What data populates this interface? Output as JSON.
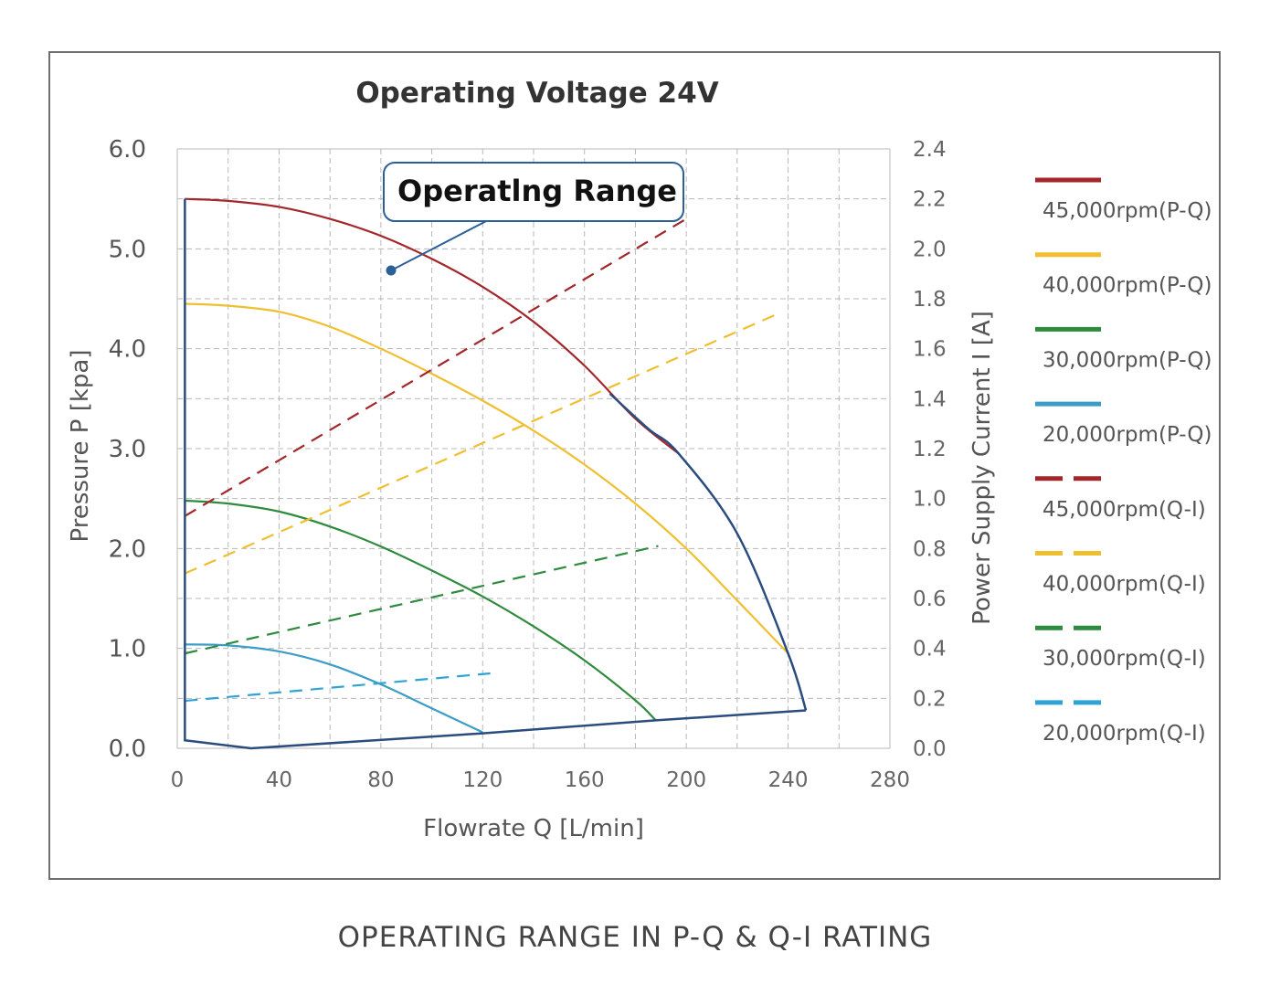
{
  "caption": "OPERATING RANGE IN P-Q & Q-I RATING",
  "chart_data": {
    "type": "line",
    "title": "Operating Voltage 24V",
    "xlabel": "Flowrate Q [L/min]",
    "ylabel": "Pressure P [kpa]",
    "y2label": "Power Supply Current I [A]",
    "xlim": [
      0,
      280
    ],
    "ylim": [
      0,
      6.0
    ],
    "y2lim": [
      0,
      2.4
    ],
    "xticks": [
      "0",
      "40",
      "80",
      "120",
      "160",
      "200",
      "240",
      "280"
    ],
    "yticks": [
      "0.0",
      "1.0",
      "2.0",
      "3.0",
      "4.0",
      "5.0",
      "6.0"
    ],
    "y2ticks": [
      "0.0",
      "0.2",
      "0.4",
      "0.6",
      "0.8",
      "1.0",
      "1.2",
      "1.4",
      "1.6",
      "1.8",
      "2.0",
      "2.2",
      "2.4"
    ],
    "grid": true,
    "legend_position": "right",
    "annotation": "Operatlng Range",
    "series": [
      {
        "name": "45,000rpm(P-Q)",
        "axis": "left",
        "style": "solid",
        "color": "#a3262a",
        "x": [
          3,
          20,
          40,
          60,
          80,
          100,
          120,
          140,
          160,
          180,
          197
        ],
        "y": [
          5.5,
          5.48,
          5.42,
          5.3,
          5.13,
          4.9,
          4.62,
          4.27,
          3.83,
          3.3,
          2.95
        ]
      },
      {
        "name": "40,000rpm(P-Q)",
        "axis": "left",
        "style": "solid",
        "color": "#f0bf30",
        "x": [
          3,
          20,
          40,
          60,
          80,
          100,
          120,
          140,
          160,
          180,
          200,
          220,
          240
        ],
        "y": [
          4.45,
          4.43,
          4.37,
          4.22,
          4.0,
          3.75,
          3.48,
          3.18,
          2.84,
          2.45,
          2.0,
          1.48,
          0.95
        ]
      },
      {
        "name": "30,000rpm(P-Q)",
        "axis": "left",
        "style": "solid",
        "color": "#2e8b3e",
        "x": [
          3,
          20,
          40,
          60,
          80,
          100,
          120,
          140,
          160,
          180,
          188
        ],
        "y": [
          2.48,
          2.45,
          2.37,
          2.22,
          2.02,
          1.78,
          1.52,
          1.22,
          0.88,
          0.48,
          0.28
        ]
      },
      {
        "name": "20,000rpm(P-Q)",
        "axis": "left",
        "style": "solid",
        "color": "#3a9cc7",
        "x": [
          3,
          20,
          40,
          60,
          80,
          100,
          120
        ],
        "y": [
          1.04,
          1.03,
          0.97,
          0.84,
          0.64,
          0.4,
          0.16
        ]
      },
      {
        "name": "45,000rpm(Q-I)",
        "axis": "right",
        "style": "dashed",
        "color": "#a3262a",
        "x": [
          3,
          200
        ],
        "y": [
          0.93,
          2.12
        ]
      },
      {
        "name": "40,000rpm(Q-I)",
        "axis": "right",
        "style": "dashed",
        "color": "#f0bf30",
        "x": [
          3,
          236
        ],
        "y": [
          0.7,
          1.74
        ]
      },
      {
        "name": "30,000rpm(Q-I)",
        "axis": "right",
        "style": "dashed",
        "color": "#2e8b3e",
        "x": [
          3,
          189
        ],
        "y": [
          0.38,
          0.81
        ]
      },
      {
        "name": "20,000rpm(Q-I)",
        "axis": "right",
        "style": "dashed",
        "color": "#2fa3d6",
        "x": [
          3,
          123
        ],
        "y": [
          0.19,
          0.3
        ]
      }
    ],
    "operating_range_boundary": {
      "color": "#2b4c7e",
      "x": [
        3,
        3,
        29,
        120,
        188,
        247,
        240,
        220,
        197,
        185,
        170
      ],
      "y": [
        5.5,
        0.08,
        0.0,
        0.15,
        0.28,
        0.38,
        0.95,
        2.15,
        2.95,
        3.2,
        3.55
      ]
    }
  }
}
